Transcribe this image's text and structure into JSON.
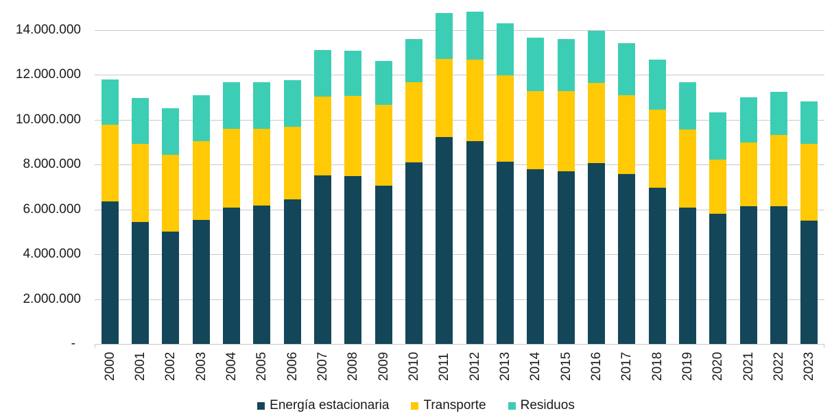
{
  "chart_data": {
    "type": "bar",
    "stacked": true,
    "title": "",
    "xlabel": "",
    "ylabel": "",
    "grid": true,
    "legend_position": "bottom",
    "categories": [
      "2000",
      "2001",
      "2002",
      "2003",
      "2004",
      "2005",
      "2006",
      "2007",
      "2008",
      "2009",
      "2010",
      "2011",
      "2012",
      "2013",
      "2014",
      "2015",
      "2016",
      "2017",
      "2018",
      "2019",
      "2020",
      "2021",
      "2022",
      "2023"
    ],
    "series": [
      {
        "name": "Energía estacionaria",
        "color": "#14465A",
        "values": [
          6350000,
          5430000,
          5020000,
          5530000,
          6070000,
          6180000,
          6440000,
          7530000,
          7480000,
          7060000,
          8110000,
          9240000,
          9040000,
          8140000,
          7790000,
          7710000,
          8060000,
          7580000,
          6960000,
          6070000,
          5790000,
          6140000,
          6130000,
          5510000
        ]
      },
      {
        "name": "Transporte",
        "color": "#FFC905",
        "values": [
          3430000,
          3490000,
          3420000,
          3500000,
          3530000,
          3420000,
          3250000,
          3510000,
          3590000,
          3610000,
          3560000,
          3480000,
          3650000,
          3850000,
          3490000,
          3550000,
          3570000,
          3520000,
          3500000,
          3480000,
          2430000,
          2840000,
          3200000,
          3420000
        ]
      },
      {
        "name": "Residuos",
        "color": "#3CCEB4",
        "values": [
          2020000,
          2040000,
          2080000,
          2050000,
          2070000,
          2070000,
          2080000,
          2060000,
          2000000,
          1950000,
          1910000,
          2030000,
          2130000,
          2300000,
          2380000,
          2350000,
          2340000,
          2300000,
          2210000,
          2120000,
          2100000,
          2020000,
          1920000,
          1870000
        ]
      }
    ],
    "y_axis": {
      "min": 0,
      "max": 15000000,
      "grid_interval": 2000000,
      "tick_values": [
        0,
        2000000,
        4000000,
        6000000,
        8000000,
        10000000,
        12000000,
        14000000
      ],
      "tick_labels": [
        "-",
        "2.000.000",
        "4.000.000",
        "6.000.000",
        "8.000.000",
        "10.000.000",
        "12.000.000",
        "14.000.000"
      ]
    },
    "colors": {
      "background": "#FFFFFF",
      "gridline": "#C9C9C9",
      "axis_line": "#C9C9C9",
      "text": "#1A1A1A"
    }
  }
}
